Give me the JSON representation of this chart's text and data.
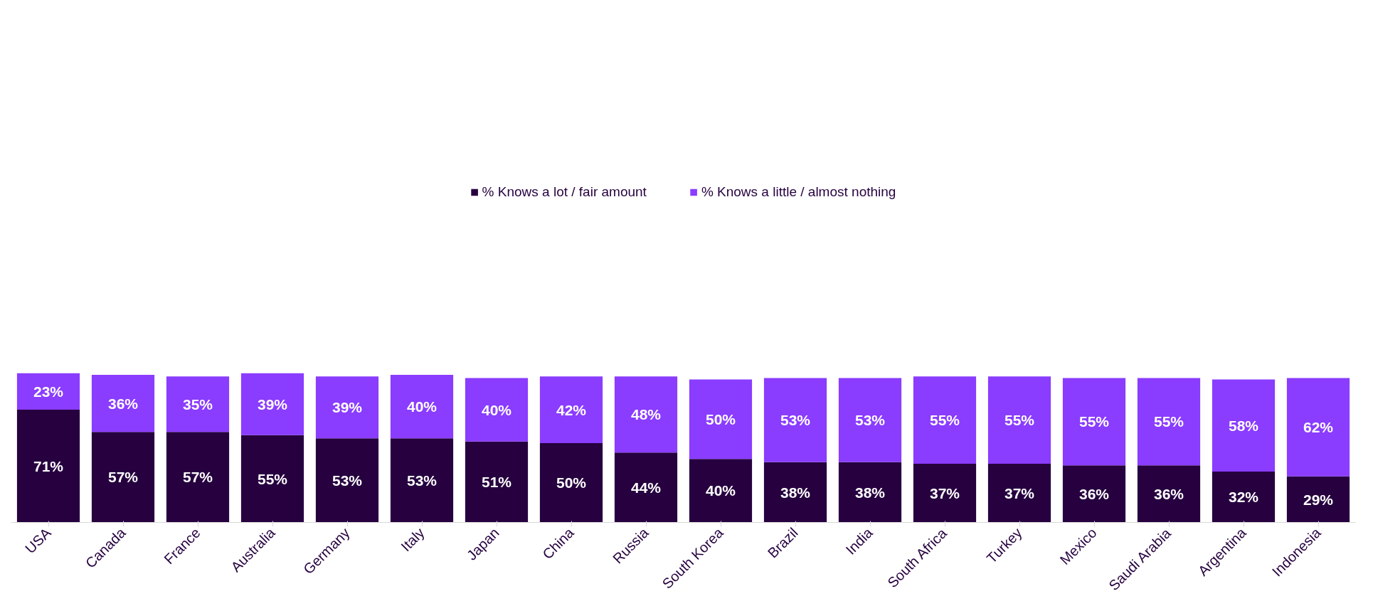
{
  "chart_data": {
    "type": "bar",
    "stacked": true,
    "legend": "top",
    "grid": false,
    "categories": [
      "USA",
      "Canada",
      "France",
      "Australia",
      "Germany",
      "Italy",
      "Japan",
      "China",
      "Russia",
      "South Korea",
      "Brazil",
      "India",
      "South Africa",
      "Turkey",
      "Mexico",
      "Saudi Arabia",
      "Argentina",
      "Indonesia"
    ],
    "series": [
      {
        "name": "% Knows a lot / fair amount",
        "color": "#26003f",
        "values": [
          71,
          57,
          57,
          55,
          53,
          53,
          51,
          50,
          44,
          40,
          38,
          38,
          37,
          37,
          36,
          36,
          32,
          29
        ],
        "value_labels": [
          "71%",
          "57%",
          "57%",
          "55%",
          "53%",
          "53%",
          "51%",
          "50%",
          "44%",
          "40%",
          "38%",
          "38%",
          "37%",
          "37%",
          "36%",
          "36%",
          "32%",
          "29%"
        ]
      },
      {
        "name": "% Knows a little / almost nothing",
        "color": "#8a3cff",
        "values": [
          23,
          36,
          35,
          39,
          39,
          40,
          40,
          42,
          48,
          50,
          53,
          53,
          55,
          55,
          55,
          55,
          58,
          62
        ],
        "value_labels": [
          "23%",
          "36%",
          "35%",
          "39%",
          "39%",
          "40%",
          "40%",
          "42%",
          "48%",
          "50%",
          "53%",
          "53%",
          "55%",
          "55%",
          "55%",
          "55%",
          "58%",
          "62%"
        ]
      }
    ]
  }
}
